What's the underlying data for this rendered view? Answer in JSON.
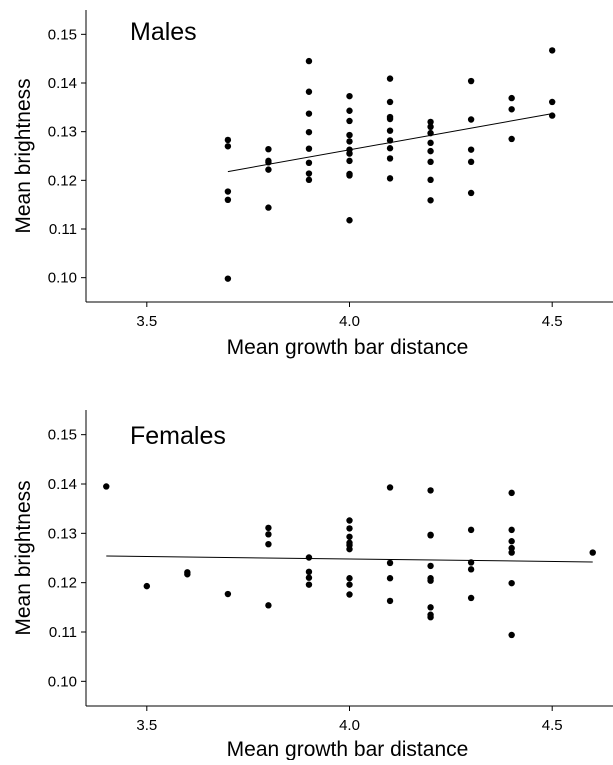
{
  "chart_data": [
    {
      "type": "scatter",
      "title": "Males",
      "xlabel": "Mean growth bar distance",
      "ylabel": "Mean brightness",
      "xlim": [
        3.35,
        4.65
      ],
      "ylim": [
        0.095,
        0.155
      ],
      "xticks": [
        3.5,
        4.0,
        4.5
      ],
      "xtick_labels": [
        "3.5",
        "4.0",
        "4.5"
      ],
      "yticks": [
        0.1,
        0.11,
        0.12,
        0.13,
        0.14,
        0.15
      ],
      "ytick_labels": [
        "0.10",
        "0.11",
        "0.12",
        "0.13",
        "0.14",
        "0.15"
      ],
      "grid": false,
      "series": [
        {
          "points": [
            [
              3.7,
              0.1283
            ],
            [
              3.7,
              0.127
            ],
            [
              3.7,
              0.1177
            ],
            [
              3.7,
              0.116
            ],
            [
              3.7,
              0.0998
            ],
            [
              3.8,
              0.1264
            ],
            [
              3.8,
              0.124
            ],
            [
              3.8,
              0.1237
            ],
            [
              3.8,
              0.1222
            ],
            [
              3.8,
              0.1144
            ],
            [
              3.9,
              0.1445
            ],
            [
              3.9,
              0.1382
            ],
            [
              3.9,
              0.1337
            ],
            [
              3.9,
              0.1299
            ],
            [
              3.9,
              0.1265
            ],
            [
              3.9,
              0.1236
            ],
            [
              3.9,
              0.1214
            ],
            [
              3.9,
              0.1201
            ],
            [
              4.0,
              0.1373
            ],
            [
              4.0,
              0.1343
            ],
            [
              4.0,
              0.1322
            ],
            [
              4.0,
              0.1293
            ],
            [
              4.0,
              0.128
            ],
            [
              4.0,
              0.1263
            ],
            [
              4.0,
              0.1255
            ],
            [
              4.0,
              0.124
            ],
            [
              4.0,
              0.1213
            ],
            [
              4.0,
              0.121
            ],
            [
              4.0,
              0.1118
            ],
            [
              4.1,
              0.1409
            ],
            [
              4.1,
              0.1361
            ],
            [
              4.1,
              0.133
            ],
            [
              4.1,
              0.1326
            ],
            [
              4.1,
              0.1302
            ],
            [
              4.1,
              0.1282
            ],
            [
              4.1,
              0.1266
            ],
            [
              4.1,
              0.1245
            ],
            [
              4.1,
              0.1204
            ],
            [
              4.2,
              0.132
            ],
            [
              4.2,
              0.131
            ],
            [
              4.2,
              0.1297
            ],
            [
              4.2,
              0.1277
            ],
            [
              4.2,
              0.126
            ],
            [
              4.2,
              0.1238
            ],
            [
              4.2,
              0.1201
            ],
            [
              4.2,
              0.1159
            ],
            [
              4.3,
              0.1404
            ],
            [
              4.3,
              0.1325
            ],
            [
              4.3,
              0.1263
            ],
            [
              4.3,
              0.1238
            ],
            [
              4.3,
              0.1174
            ],
            [
              4.4,
              0.1369
            ],
            [
              4.4,
              0.1346
            ],
            [
              4.4,
              0.1285
            ],
            [
              4.5,
              0.1467
            ],
            [
              4.5,
              0.1361
            ],
            [
              4.5,
              0.1333
            ]
          ]
        }
      ],
      "trendline": {
        "x": [
          3.7,
          4.5
        ],
        "y": [
          0.1218,
          0.1337
        ]
      }
    },
    {
      "type": "scatter",
      "title": "Females",
      "xlabel": "Mean growth bar distance",
      "ylabel": "Mean brightness",
      "xlim": [
        3.35,
        4.65
      ],
      "ylim": [
        0.095,
        0.155
      ],
      "xticks": [
        3.5,
        4.0,
        4.5
      ],
      "xtick_labels": [
        "3.5",
        "4.0",
        "4.5"
      ],
      "yticks": [
        0.1,
        0.11,
        0.12,
        0.13,
        0.14,
        0.15
      ],
      "ytick_labels": [
        "0.10",
        "0.11",
        "0.12",
        "0.13",
        "0.14",
        "0.15"
      ],
      "grid": false,
      "series": [
        {
          "points": [
            [
              3.4,
              0.1395
            ],
            [
              3.5,
              0.1193
            ],
            [
              3.6,
              0.1221
            ],
            [
              3.6,
              0.1217
            ],
            [
              3.7,
              0.1177
            ],
            [
              3.8,
              0.1311
            ],
            [
              3.8,
              0.1298
            ],
            [
              3.8,
              0.1278
            ],
            [
              3.8,
              0.1154
            ],
            [
              3.9,
              0.1251
            ],
            [
              3.9,
              0.1222
            ],
            [
              3.9,
              0.121
            ],
            [
              3.9,
              0.1196
            ],
            [
              4.0,
              0.1326
            ],
            [
              4.0,
              0.131
            ],
            [
              4.0,
              0.1293
            ],
            [
              4.0,
              0.1281
            ],
            [
              4.0,
              0.1276
            ],
            [
              4.0,
              0.1268
            ],
            [
              4.0,
              0.1209
            ],
            [
              4.0,
              0.1196
            ],
            [
              4.0,
              0.1176
            ],
            [
              4.1,
              0.1393
            ],
            [
              4.1,
              0.124
            ],
            [
              4.1,
              0.1209
            ],
            [
              4.1,
              0.1163
            ],
            [
              4.2,
              0.1387
            ],
            [
              4.2,
              0.1297
            ],
            [
              4.2,
              0.1296
            ],
            [
              4.2,
              0.1234
            ],
            [
              4.2,
              0.1209
            ],
            [
              4.2,
              0.1204
            ],
            [
              4.2,
              0.115
            ],
            [
              4.2,
              0.1135
            ],
            [
              4.2,
              0.113
            ],
            [
              4.3,
              0.1307
            ],
            [
              4.3,
              0.1241
            ],
            [
              4.3,
              0.1227
            ],
            [
              4.3,
              0.1169
            ],
            [
              4.4,
              0.1382
            ],
            [
              4.4,
              0.1307
            ],
            [
              4.4,
              0.1284
            ],
            [
              4.4,
              0.127
            ],
            [
              4.4,
              0.1261
            ],
            [
              4.4,
              0.1199
            ],
            [
              4.4,
              0.1094
            ],
            [
              4.6,
              0.1261
            ]
          ]
        }
      ],
      "trendline": {
        "x": [
          3.4,
          4.6
        ],
        "y": [
          0.1254,
          0.1242
        ]
      }
    }
  ]
}
